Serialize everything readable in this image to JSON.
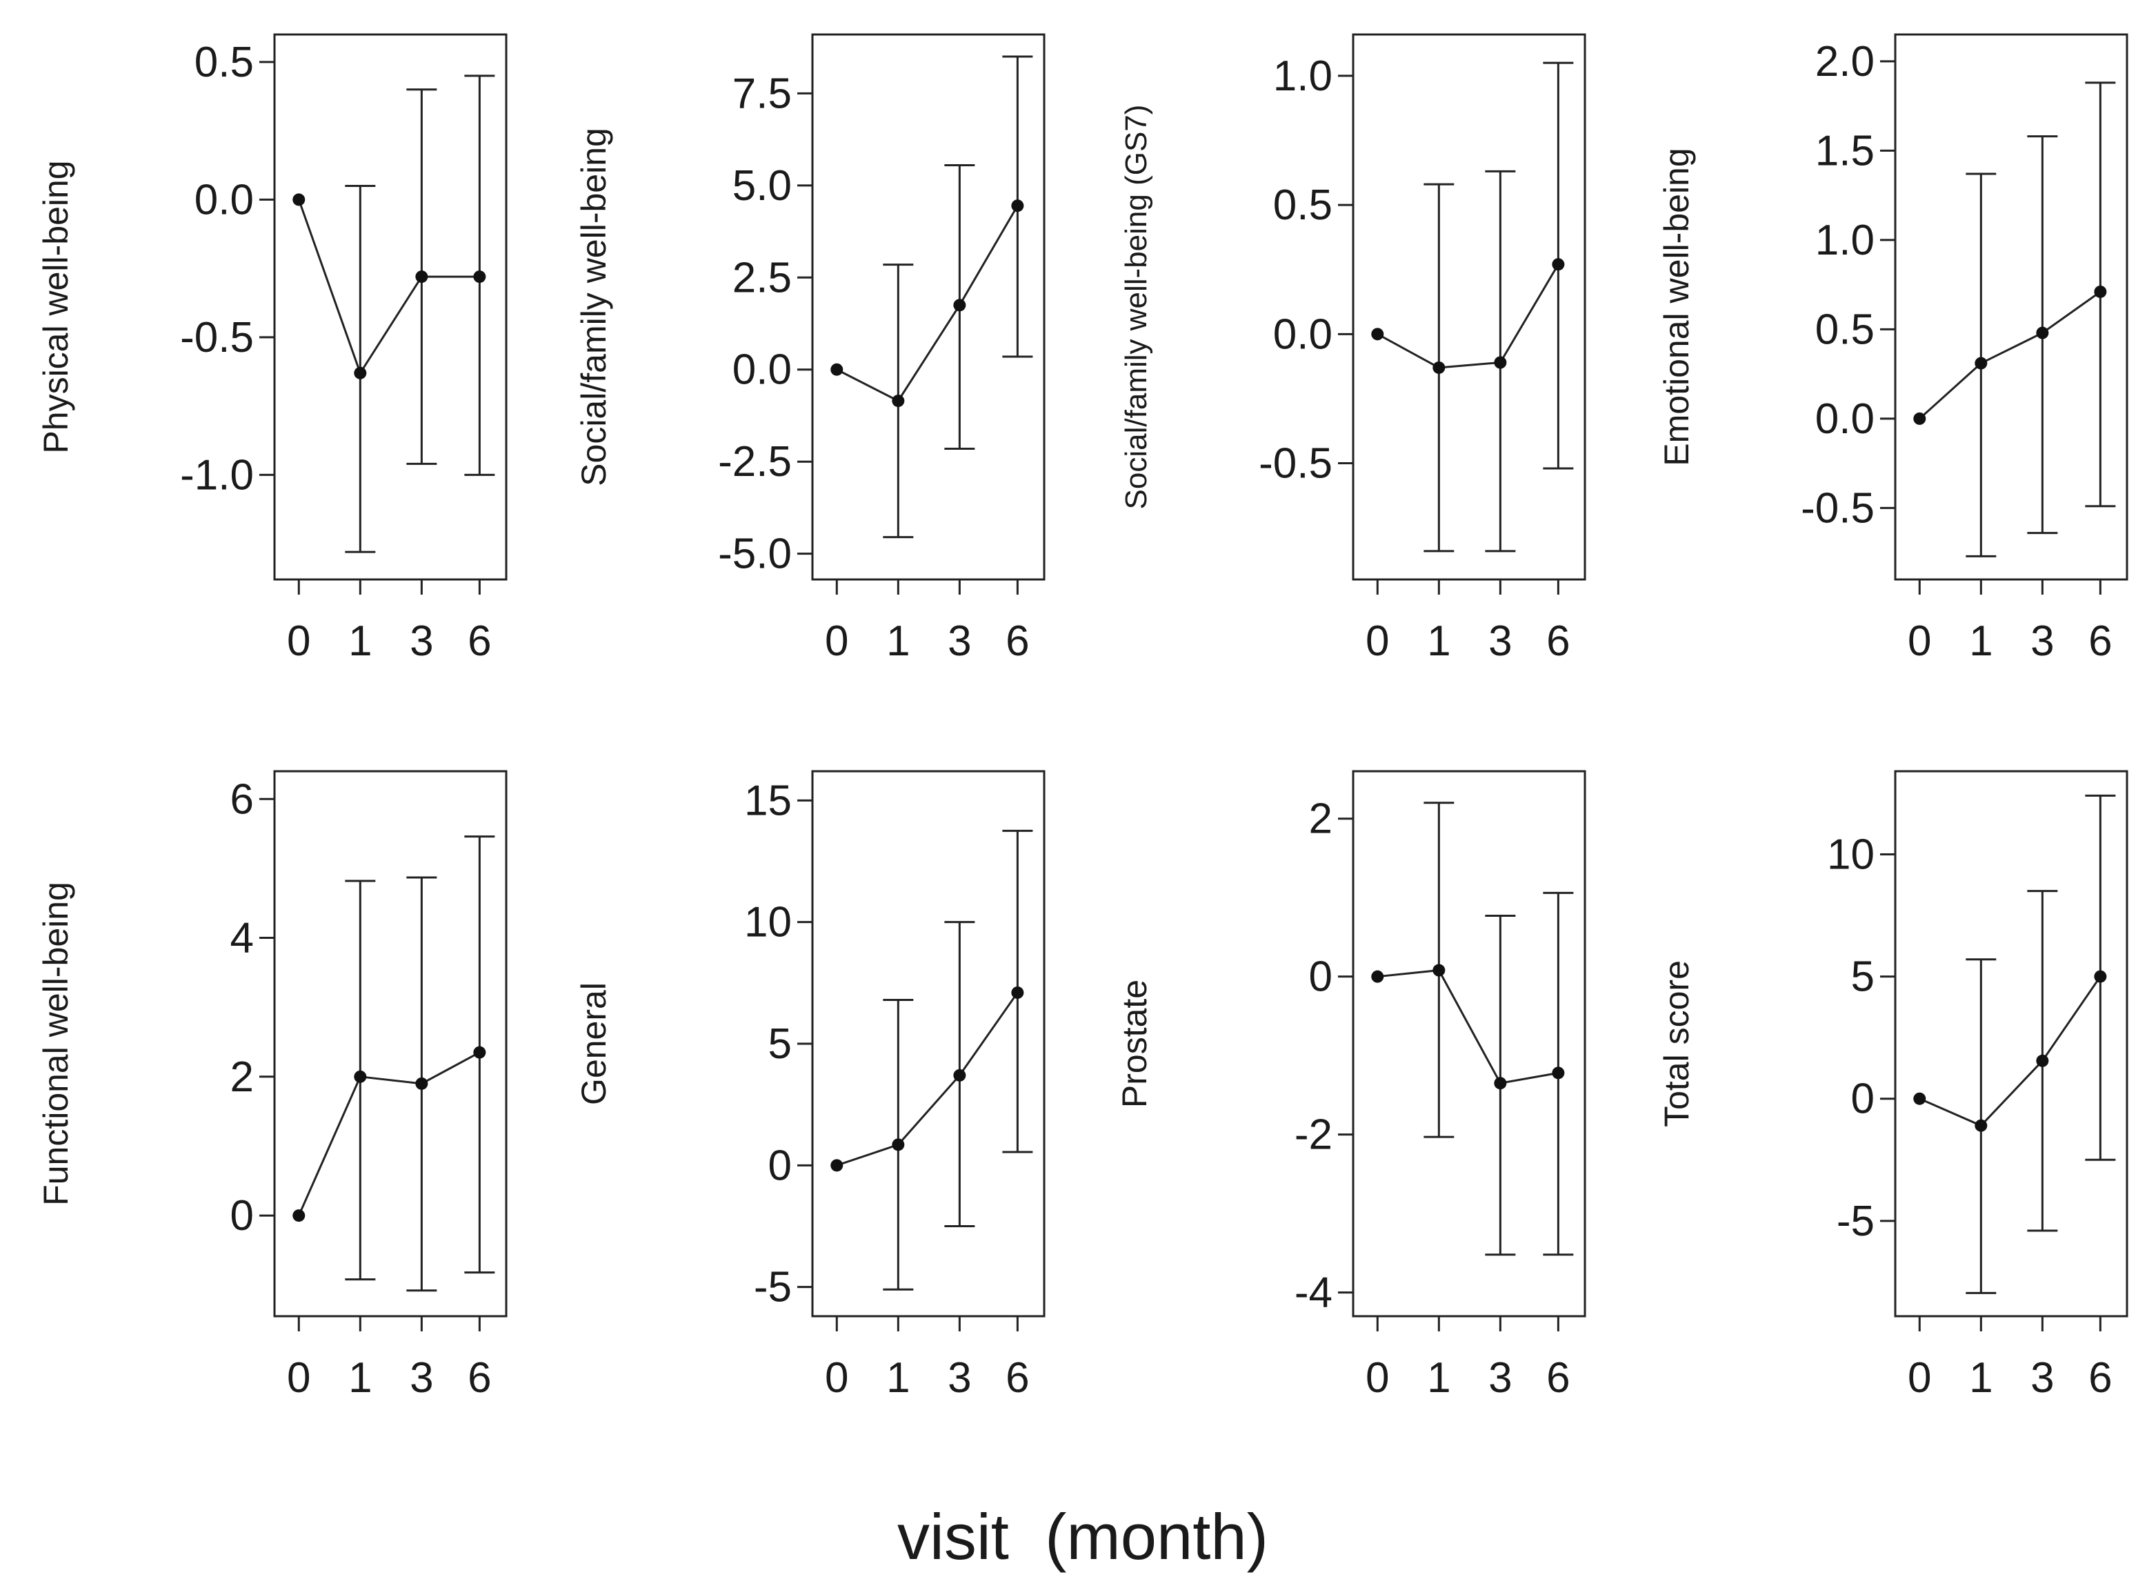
{
  "figure": {
    "xlabel": "visit  (month)"
  },
  "chart_data": [
    {
      "type": "line",
      "ylabel": "Physical well-being",
      "categories": [
        "0",
        "1",
        "3",
        "6"
      ],
      "values": [
        0,
        -0.63,
        -0.28,
        -0.28
      ],
      "lower": [
        0,
        -1.28,
        -0.96,
        -1.0
      ],
      "upper": [
        0,
        0.05,
        0.4,
        0.45
      ],
      "ylim": [
        -1.38,
        0.6
      ],
      "yticks": [
        0.5,
        0.0,
        -0.5,
        -1.0
      ],
      "ytick_labels": [
        "0.5",
        "0.0",
        "-0.5",
        "-1.0"
      ]
    },
    {
      "type": "line",
      "ylabel": "Social/family well-being",
      "categories": [
        "0",
        "1",
        "3",
        "6"
      ],
      "values": [
        0,
        -0.85,
        1.75,
        4.45
      ],
      "lower": [
        0,
        -4.55,
        -2.15,
        0.35
      ],
      "upper": [
        0,
        2.85,
        5.55,
        8.5
      ],
      "ylim": [
        -5.7,
        9.1
      ],
      "yticks": [
        7.5,
        5.0,
        2.5,
        0.0,
        -2.5,
        -5.0
      ],
      "ytick_labels": [
        "7.5",
        "5.0",
        "2.5",
        "0.0",
        "-2.5",
        "-5.0"
      ]
    },
    {
      "type": "line",
      "ylabel": "Social/family well-being (GS7)",
      "categories": [
        "0",
        "1",
        "3",
        "6"
      ],
      "values": [
        0,
        -0.13,
        -0.11,
        0.27
      ],
      "lower": [
        0,
        -0.84,
        -0.84,
        -0.52
      ],
      "upper": [
        0,
        0.58,
        0.63,
        1.05
      ],
      "ylim": [
        -0.95,
        1.16
      ],
      "yticks": [
        1.0,
        0.5,
        0.0,
        -0.5
      ],
      "ytick_labels": [
        "1.0",
        "0.5",
        "0.0",
        "-0.5"
      ]
    },
    {
      "type": "line",
      "ylabel": "Emotional well-being",
      "categories": [
        "0",
        "1",
        "3",
        "6"
      ],
      "values": [
        0,
        0.31,
        0.48,
        0.71
      ],
      "lower": [
        0,
        -0.77,
        -0.64,
        -0.49
      ],
      "upper": [
        0,
        1.37,
        1.58,
        1.88
      ],
      "ylim": [
        -0.9,
        2.15
      ],
      "yticks": [
        2.0,
        1.5,
        1.0,
        0.5,
        0.0,
        -0.5
      ],
      "ytick_labels": [
        "2.0",
        "1.5",
        "1.0",
        "0.5",
        "0.0",
        "-0.5"
      ]
    },
    {
      "type": "line",
      "ylabel": "Functional well-being",
      "categories": [
        "0",
        "1",
        "3",
        "6"
      ],
      "values": [
        0,
        2.0,
        1.9,
        2.35
      ],
      "lower": [
        0,
        -0.92,
        -1.08,
        -0.82
      ],
      "upper": [
        0,
        4.82,
        4.87,
        5.46
      ],
      "ylim": [
        -1.45,
        6.4
      ],
      "yticks": [
        6,
        4,
        2,
        0
      ],
      "ytick_labels": [
        "6",
        "4",
        "2",
        "0"
      ]
    },
    {
      "type": "line",
      "ylabel": "General",
      "categories": [
        "0",
        "1",
        "3",
        "6"
      ],
      "values": [
        0,
        0.85,
        3.7,
        7.1
      ],
      "lower": [
        0,
        -5.1,
        -2.5,
        0.55
      ],
      "upper": [
        0,
        6.8,
        10.0,
        13.75
      ],
      "ylim": [
        -6.2,
        16.2
      ],
      "yticks": [
        15,
        10,
        5,
        0,
        -5
      ],
      "ytick_labels": [
        "15",
        "10",
        "5",
        "0",
        "-5"
      ]
    },
    {
      "type": "line",
      "ylabel": "Prostate",
      "categories": [
        "0",
        "1",
        "3",
        "6"
      ],
      "values": [
        0,
        0.08,
        -1.35,
        -1.22
      ],
      "lower": [
        0,
        -2.03,
        -3.52,
        -3.52
      ],
      "upper": [
        0,
        2.2,
        0.77,
        1.06
      ],
      "ylim": [
        -4.3,
        2.6
      ],
      "yticks": [
        2,
        0,
        -2,
        -4
      ],
      "ytick_labels": [
        "2",
        "0",
        "-2",
        "-4"
      ]
    },
    {
      "type": "line",
      "ylabel": "Total score",
      "categories": [
        "0",
        "1",
        "3",
        "6"
      ],
      "values": [
        0,
        -1.1,
        1.55,
        5.0
      ],
      "lower": [
        0,
        -7.95,
        -5.4,
        -2.5
      ],
      "upper": [
        0,
        5.7,
        8.5,
        12.4
      ],
      "ylim": [
        -8.9,
        13.4
      ],
      "yticks": [
        10,
        5,
        0,
        -5
      ],
      "ytick_labels": [
        "10",
        "5",
        "0",
        "-5"
      ]
    }
  ]
}
